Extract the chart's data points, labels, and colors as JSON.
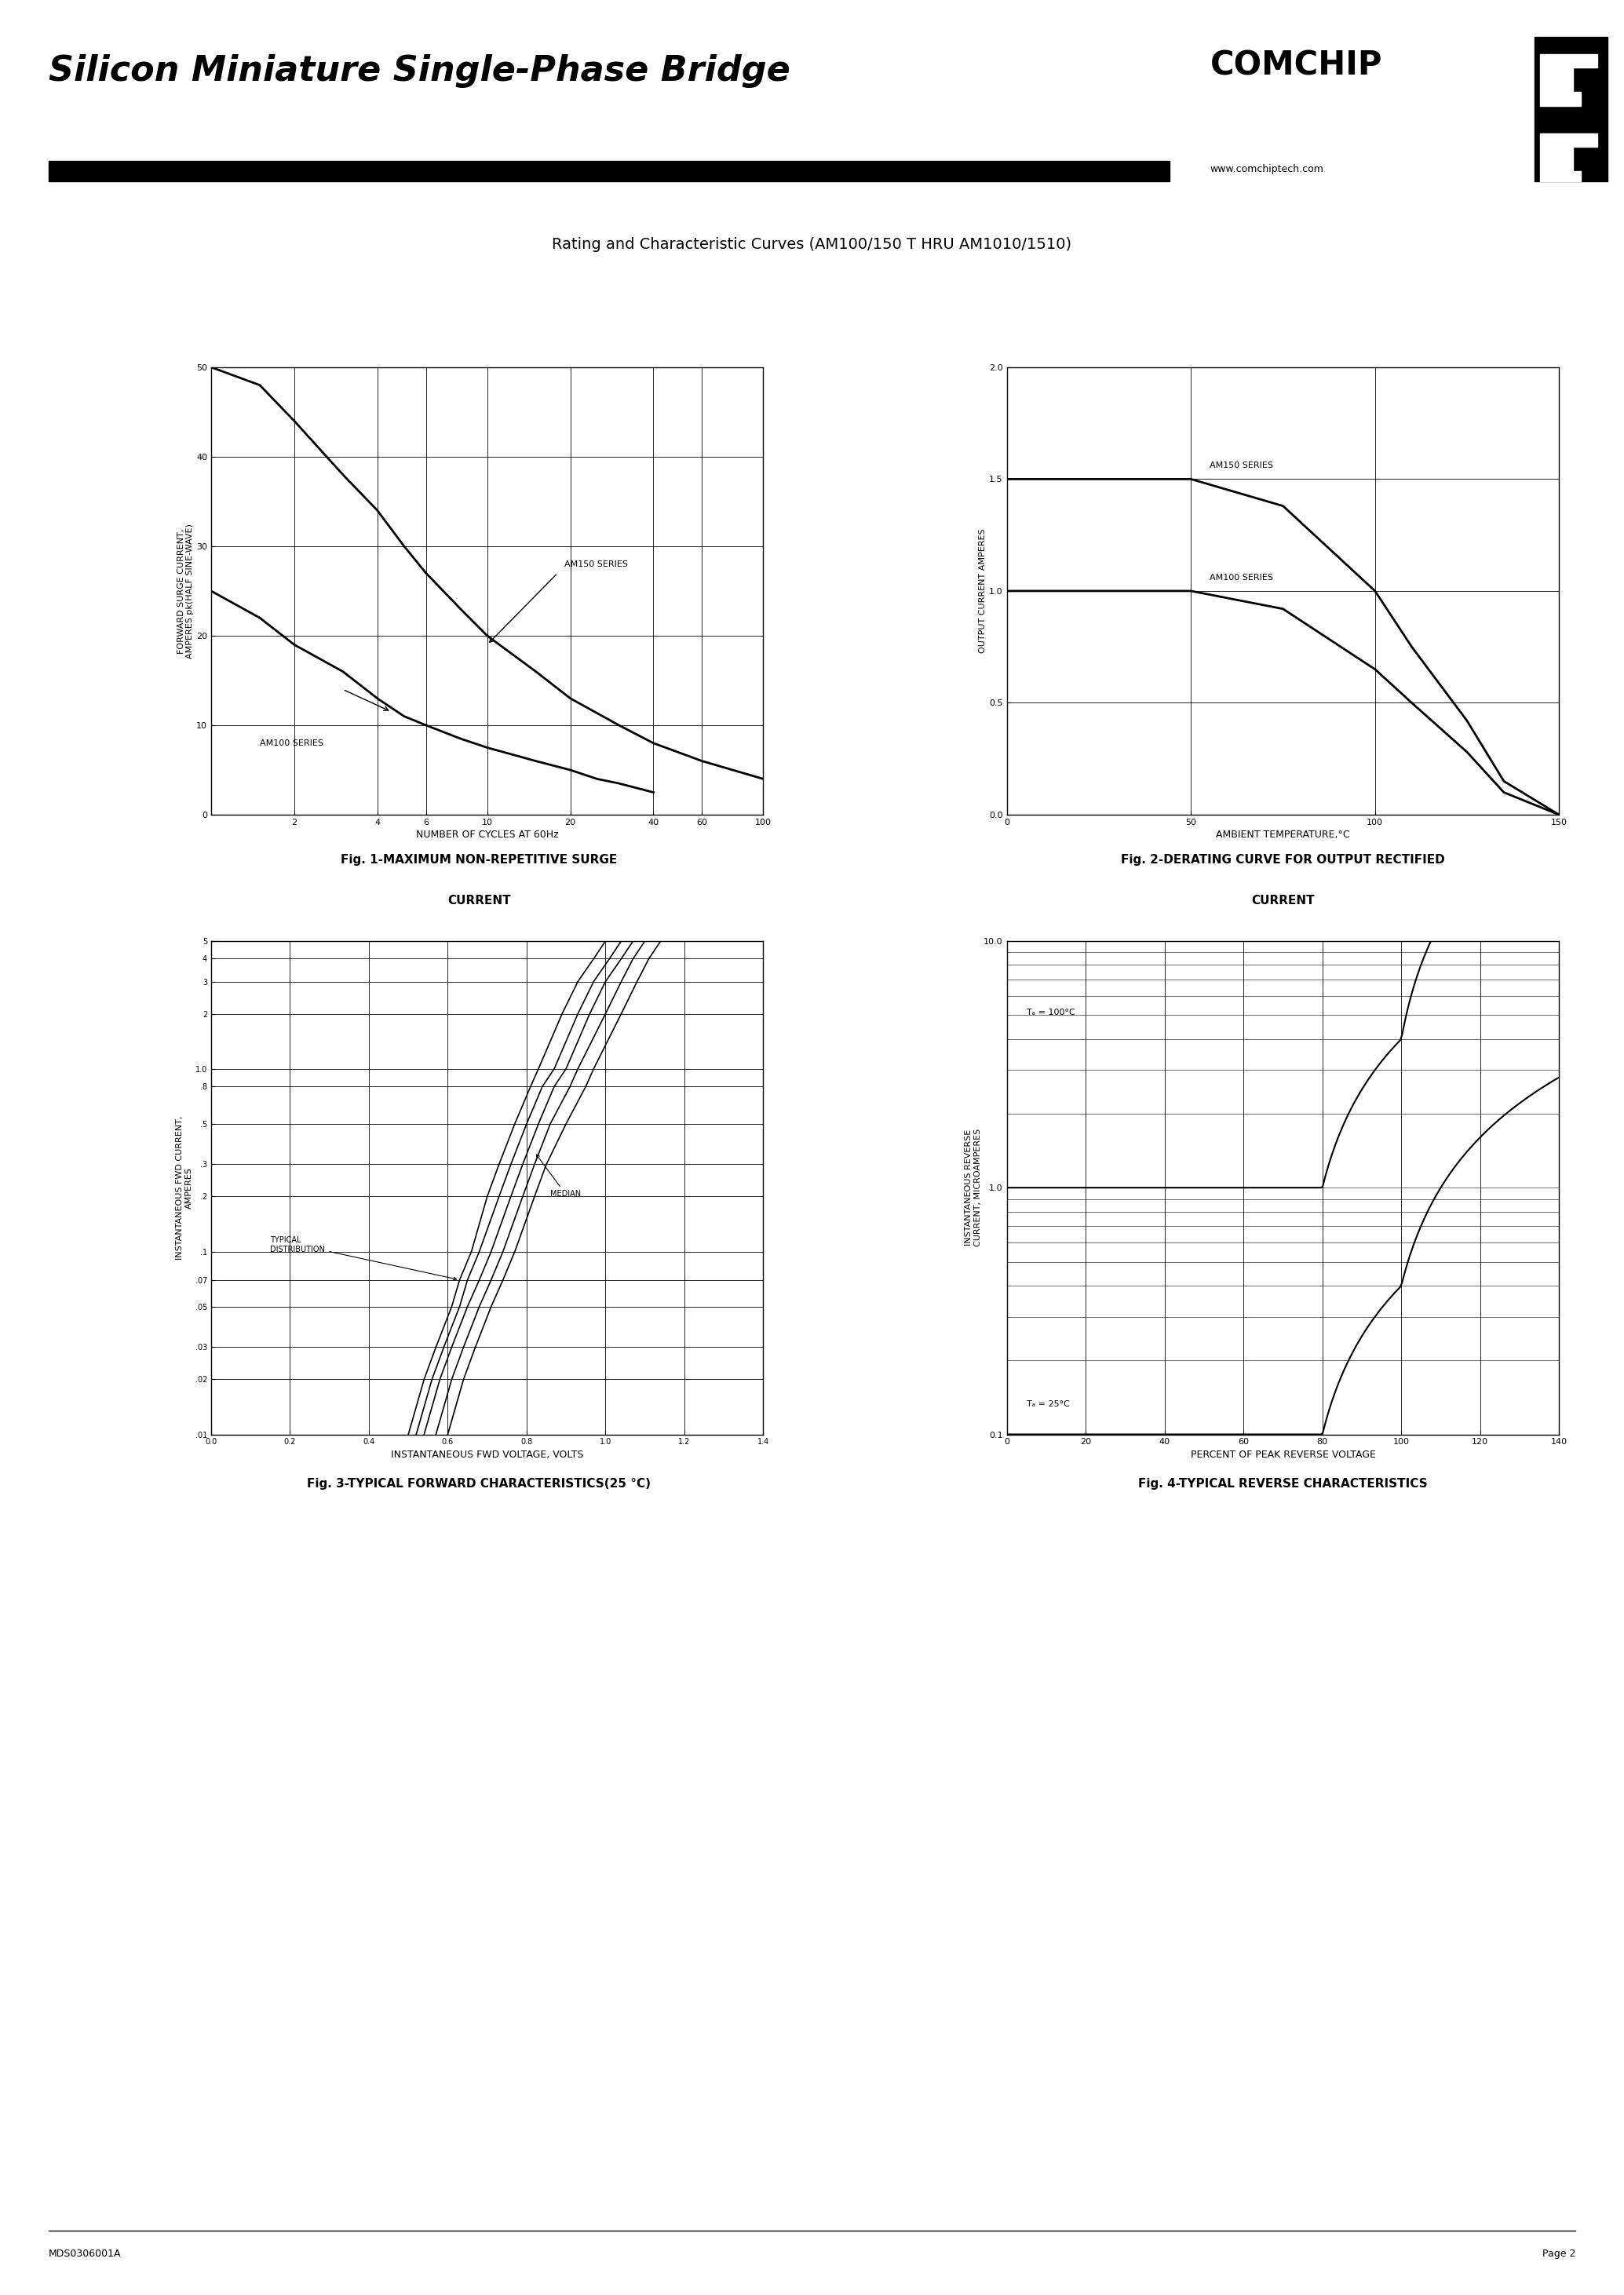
{
  "title": "Silicon Miniature Single-Phase Bridge",
  "subtitle": "Rating and Characteristic Curves (AM100/150 T HRU AM1010/1510)",
  "comchip_text": "COMCHIP",
  "website": "www.comchiptech.com",
  "footer_left": "MDS0306001A",
  "footer_right": "Page 2",
  "fig1_title_line1": "Fig. 1-MAXIMUM NON-REPETITIVE SURGE",
  "fig1_title_line2": "CURRENT",
  "fig1_xlabel": "NUMBER OF CYCLES AT 60Hz",
  "fig1_ylabel": "FORWARD SURGE CURRENT,\nAMPERES pk(HALF SINE-WAVE)",
  "fig1_am150_label": "AM150 SERIES",
  "fig1_am100_label": "AM100 SERIES",
  "fig1_yticks": [
    0,
    10,
    20,
    30,
    40,
    50
  ],
  "fig2_title_line1": "Fig. 2-DERATING CURVE FOR OUTPUT RECTIFIED",
  "fig2_title_line2": "CURRENT",
  "fig2_xlabel": "AMBIENT TEMPERATURE,°C",
  "fig2_ylabel": "OUTPUT CURRENT AMPERES",
  "fig2_am150_label": "AM150 SERIES",
  "fig2_am100_label": "AM100 SERIES",
  "fig2_xticks": [
    0,
    50,
    100,
    150
  ],
  "fig2_yticks": [
    0,
    0.5,
    1.0,
    1.5,
    2.0
  ],
  "fig3_title": "Fig. 3-TYPICAL FORWARD CHARACTERISTICS(25 °C)",
  "fig3_xlabel": "INSTANTANEOUS FWD VOLTAGE, VOLTS",
  "fig3_ylabel": "INSTANTANEOUS FWD CURRENT,\nAMPERES",
  "fig3_xticks": [
    0,
    0.2,
    0.4,
    0.6,
    0.8,
    1.0,
    1.2,
    1.4
  ],
  "fig3_ytick_labels": [
    "5",
    "4",
    "3",
    "2",
    "1.0",
    ".8",
    ".5",
    ".3",
    ".2",
    ".1",
    ".07",
    ".05",
    ".03",
    ".02",
    ".01"
  ],
  "fig3_typical_label": "TYPICAL\nDISTRIBUTION",
  "fig3_median_label": "MEDIAN",
  "fig4_title": "Fig. 4-TYPICAL REVERSE CHARACTERISTICS",
  "fig4_xlabel": "PERCENT OF PEAK REVERSE VOLTAGE",
  "fig4_ylabel": "INSTANTANEOUS REVERSE\nCURRENT, MICROAMPERES",
  "fig4_xticks": [
    0,
    20,
    40,
    60,
    80,
    100,
    120,
    140
  ],
  "fig4_ta100_label": "Tₐ = 100°C",
  "fig4_ta25_label": "Tₐ = 25°C",
  "bg_color": "#ffffff",
  "line_color": "#000000"
}
